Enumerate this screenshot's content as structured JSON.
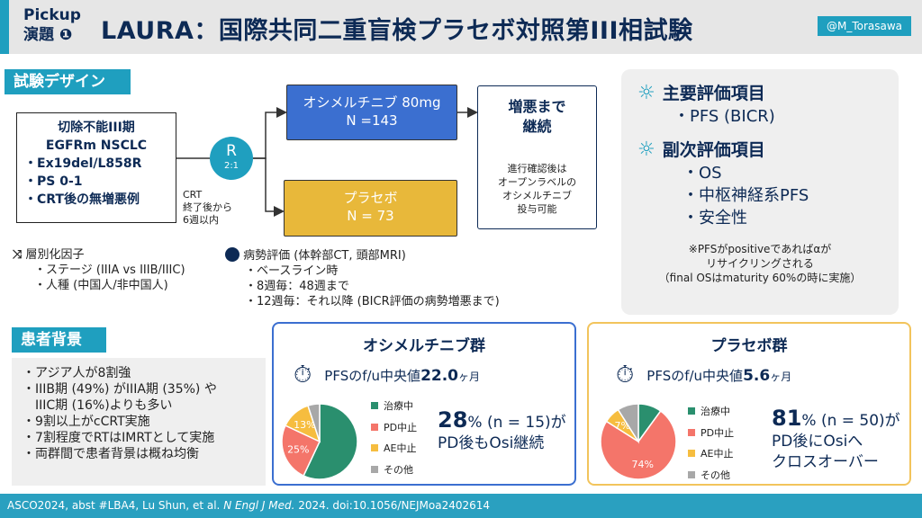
{
  "header": {
    "pickup": "Pickup",
    "session": "演題",
    "session_num": "❶",
    "title": "LAURA：国際共同二重盲検プラセボ対照第III相試験",
    "tag": "@M_Torasawa"
  },
  "design": {
    "label": "試験デザイン",
    "population": {
      "line1": "切除不能III期",
      "line2": "EGFRm NSCLC",
      "bullets": [
        "・Ex19del/L858R",
        "・PS 0-1",
        "・CRT後の無増悪例"
      ]
    },
    "randomization": {
      "label": "R",
      "ratio": "2:1"
    },
    "crt_note": [
      "CRT",
      "終了後から",
      "6週以内"
    ],
    "arm1": {
      "name": "オシメルチニブ 80mg",
      "n": "N =143"
    },
    "arm2": {
      "name": "プラセボ",
      "n": "N = 73"
    },
    "continue": {
      "title": [
        "増悪まで",
        "継続"
      ],
      "note": [
        "進行確認後は",
        "オープンラベルの",
        "オシメルチニブ",
        "投与可能"
      ]
    },
    "stratification": {
      "title": "層別化因子",
      "items": [
        "・ステージ (IIIA vs IIIB/IIIC)",
        "・人種 (中国人/非中国人)"
      ]
    },
    "assessment": {
      "title": "病勢評価 (体幹部CT, 頭部MRI)",
      "items": [
        "・ベースライン時",
        "・8週毎：48週まで",
        "・12週毎：それ以降 (BICR評価の病勢増悪まで)"
      ]
    }
  },
  "endpoints": {
    "primary_title": "主要評価項目",
    "primary": [
      "・PFS (BICR)"
    ],
    "secondary_title": "副次評価項目",
    "secondary": [
      "・OS",
      "・中枢神経系PFS",
      "・安全性"
    ],
    "note": [
      "※PFSがpositiveであればαが",
      "リサイクリングされる",
      "（final OSはmaturity 60%の時に実施）"
    ]
  },
  "background": {
    "label": "患者背景",
    "items": [
      "・アジア人が8割強",
      "・IIIB期 (49%) がIIIA期 (35%) や",
      "　IIIC期 (16%)よりも多い",
      "・9割以上がcCRT実施",
      "・7割程度でRTはIMRTとして実施",
      "・両群間で患者背景は概ね均衡"
    ]
  },
  "legend": [
    "治療中",
    "PD中止",
    "AE中止",
    "その他"
  ],
  "colors": {
    "treating": "#2a8f6e",
    "pd": "#f4756a",
    "ae": "#f6bd3f",
    "other": "#a8a8a8"
  },
  "osi": {
    "title": "オシメルチニブ群",
    "pfs_label": "PFSのf/u中央値",
    "pfs_value": "22.0",
    "pfs_unit": "ヶ月",
    "pct": "28",
    "rest1": "% (n = 15)が",
    "line2": "PD後もOsi継続"
  },
  "placebo": {
    "title": "プラセボ群",
    "pfs_label": "PFSのf/u中央値",
    "pfs_value": "5.6",
    "pfs_unit": "ヶ月",
    "pct": "81",
    "rest1": "% (n = 50)が",
    "line2": "PD後にOsiへ",
    "line3": "クロスオーバー"
  },
  "chart_data": [
    {
      "type": "pie",
      "title": "オシメルチニブ群",
      "categories": [
        "治療中",
        "PD中止",
        "AE中止",
        "その他"
      ],
      "values": [
        57,
        25,
        13,
        5
      ],
      "labels": [
        "",
        "25%",
        "13%",
        ""
      ]
    },
    {
      "type": "pie",
      "title": "プラセボ群",
      "categories": [
        "治療中",
        "PD中止",
        "AE中止",
        "その他"
      ],
      "values": [
        10,
        74,
        7,
        9
      ],
      "labels": [
        "",
        "74%",
        "7%",
        ""
      ]
    }
  ],
  "footer": {
    "text": "ASCO2024, abst #LBA4, Lu Shun, et al. ",
    "journal": "N Engl J Med.",
    "rest": " 2024. doi:10.1056/NEJMoa2402614"
  }
}
